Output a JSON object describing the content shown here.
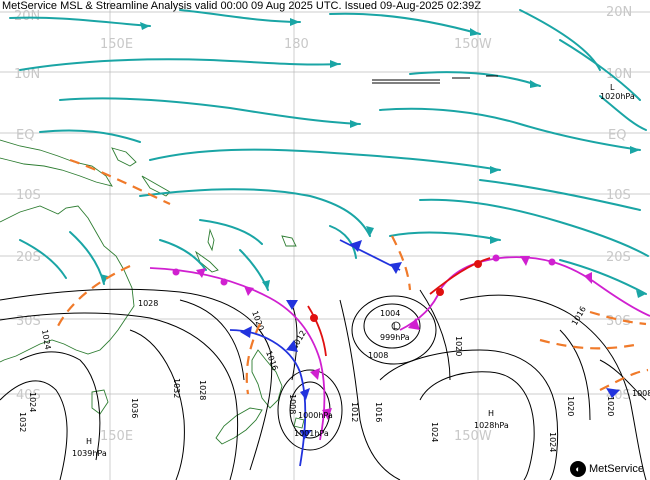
{
  "title": "MetService MSL & Streamline Analysis valid 00:00 09 Aug 2025 UTC. Issued 09-Aug-2025 02:39Z",
  "lat_labels": [
    "20N",
    "10N",
    "EQ",
    "10S",
    "20S",
    "30S",
    "40S"
  ],
  "lon_labels": [
    "150E",
    "180",
    "150W"
  ],
  "isobar_labels": [
    "1024",
    "1028",
    "1020",
    "1016",
    "1012",
    "1008",
    "1004",
    "1020",
    "1016",
    "1012",
    "1008",
    "1036",
    "1032",
    "1028",
    "1024",
    "1032",
    "1024",
    "1020",
    "1016",
    "1020",
    "1024",
    "1008"
  ],
  "centers": [
    {
      "type": "L",
      "pressure": "1020hPa"
    },
    {
      "type": "L",
      "pressure": "999hPa"
    },
    {
      "type": "L",
      "pressure": "1000hPa"
    },
    {
      "type": "L",
      "pressure": "1001hPa"
    },
    {
      "type": "H",
      "pressure": "1039hPa"
    },
    {
      "type": "H",
      "pressure": "1028hPa"
    }
  ],
  "brand": "MetService",
  "colors": {
    "streamline": "#1aa5a5",
    "isobar": "#000000",
    "coast": "#2e7d32",
    "grid": "#bbbbbb",
    "trough": "#f07a2a",
    "front_cold": "#2233dd",
    "front_warm": "#e01010",
    "front_occluded": "#d020d0"
  }
}
